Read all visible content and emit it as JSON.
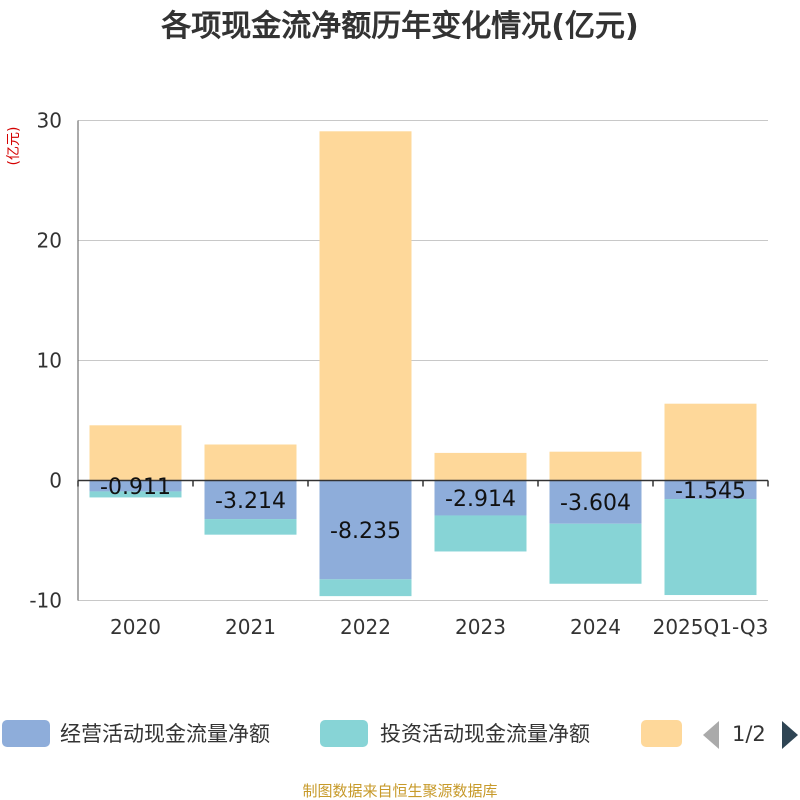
{
  "chart_data": {
    "type": "bar",
    "stacked": true,
    "title": "各项现金流净额历年变化情况(亿元)",
    "ylabel": "(亿元)",
    "xlabel": "",
    "categories": [
      "2020",
      "2021",
      "2022",
      "2023",
      "2024",
      "2025Q1-Q3"
    ],
    "ylim": [
      -10,
      30
    ],
    "yticks": [
      -10,
      0,
      10,
      20,
      30
    ],
    "grid": true,
    "series": [
      {
        "name": "经营活动现金流量净额",
        "color": "#8eadda",
        "values": [
          -0.911,
          -3.214,
          -8.235,
          -2.914,
          -3.604,
          -1.545
        ],
        "labels": [
          "-0.911",
          "-3.214",
          "-8.235",
          "-2.914",
          "-3.604",
          "-1.545"
        ]
      },
      {
        "name": "投资活动现金流量净额",
        "color": "#87d4d6",
        "values": [
          -0.5,
          -1.3,
          -1.4,
          -3.0,
          -5.0,
          -8.0
        ]
      },
      {
        "name": "",
        "color": "#fed89a",
        "values": [
          4.6,
          3.0,
          29.1,
          2.3,
          2.4,
          6.4
        ]
      }
    ],
    "legend": {
      "page": "1/2",
      "position": "bottom"
    }
  },
  "footer": {
    "source": "制图数据来自恒生聚源数据库"
  }
}
